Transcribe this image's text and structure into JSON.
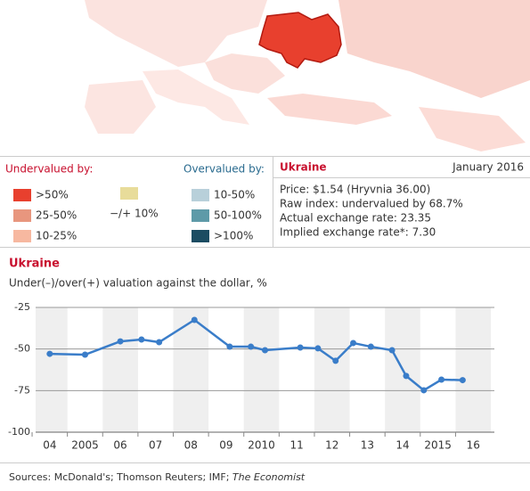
{
  "legend": {
    "under_title": "Undervalued by:",
    "over_title": "Overvalued by:",
    "under": [
      {
        "label": ">50%",
        "color": "#e8402e"
      },
      {
        "label": "25-50%",
        "color": "#e8967e"
      },
      {
        "label": "10-25%",
        "color": "#f7b8a0"
      }
    ],
    "neutral": {
      "label": "−/+ 10%",
      "color": "#e8dc9a"
    },
    "over": [
      {
        "label": "10-50%",
        "color": "#b8d0da"
      },
      {
        "label": "50-100%",
        "color": "#5e9aa8"
      },
      {
        "label": ">100%",
        "color": "#1b4c62"
      }
    ]
  },
  "panel": {
    "country": "Ukraine",
    "date": "January 2016",
    "lines": [
      "Price: $1.54 (Hryvnia 36.00)",
      "Raw index: undervalued by 68.7%",
      "Actual exchange rate: 23.35",
      "Implied exchange rate*: 7.30"
    ]
  },
  "chart_data": {
    "type": "line",
    "title": "Ukraine",
    "subtitle": "Under(–)/over(+) valuation against the dollar, %",
    "x": [
      2004.0,
      2005.0,
      2006.0,
      2006.6,
      2007.1,
      2008.1,
      2009.1,
      2009.7,
      2010.1,
      2011.1,
      2011.6,
      2012.1,
      2012.6,
      2013.1,
      2013.7,
      2014.1,
      2014.6,
      2015.1,
      2015.7
    ],
    "series": [
      {
        "name": "Ukraine",
        "color": "#3a7dc9",
        "values": [
          -52.9,
          -53.4,
          -45.4,
          -44.3,
          -45.9,
          -32.5,
          -48.6,
          -48.6,
          -50.7,
          -49.1,
          -49.6,
          -57.1,
          -46.4,
          -48.6,
          -50.7,
          -66.2,
          -74.8,
          -68.4,
          -68.7
        ]
      }
    ],
    "xlim": [
      2003.6,
      2016.6
    ],
    "xticks": [
      {
        "value": 2004,
        "label": "04"
      },
      2005,
      {
        "value": 2006,
        "label": "06"
      },
      {
        "value": 2007,
        "label": "07"
      },
      {
        "value": 2008,
        "label": "08"
      },
      {
        "value": 2009,
        "label": "09"
      },
      2010,
      {
        "value": 2011,
        "label": "11"
      },
      {
        "value": 2012,
        "label": "12"
      },
      {
        "value": 2013,
        "label": "13"
      },
      {
        "value": 2014,
        "label": "14"
      },
      2015,
      {
        "value": 2016,
        "label": "16"
      }
    ],
    "ylim": [
      -100,
      -25
    ],
    "yticks": [
      -25,
      -50,
      -75,
      -100
    ],
    "grid": true,
    "band_color": "#efefef"
  },
  "footer": {
    "sources": "Sources: McDonald's; Thomson Reuters; IMF;",
    "publisher": "The Economist"
  }
}
